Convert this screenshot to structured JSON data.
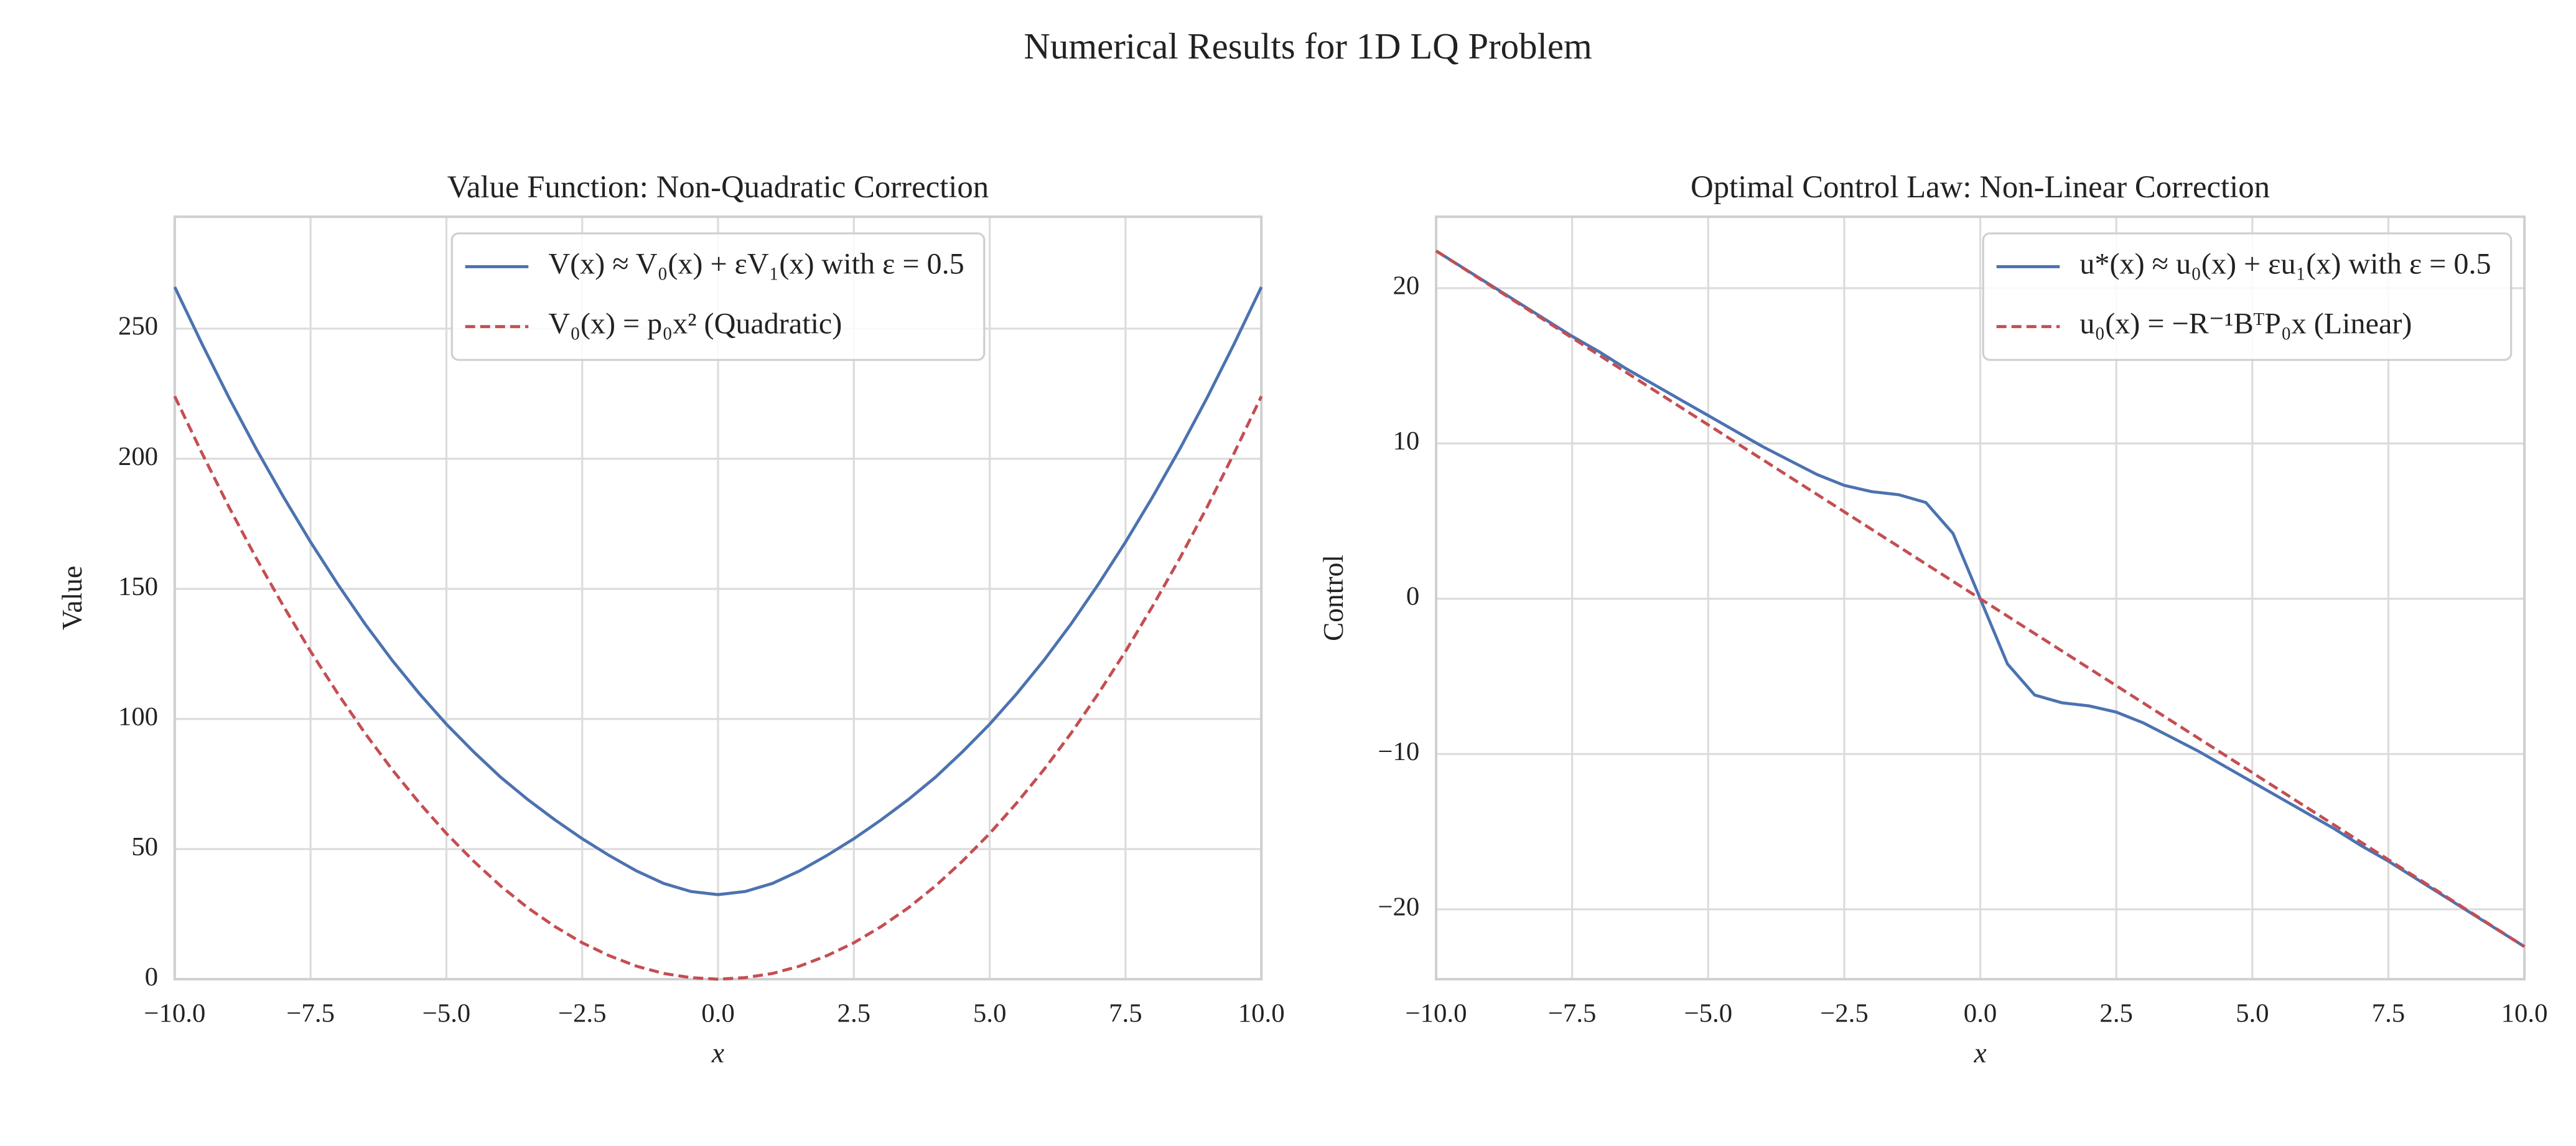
{
  "title": "Numerical Results for 1D LQ Problem",
  "chart_data": [
    {
      "type": "line",
      "title": "Value Function: Non-Quadratic Correction",
      "xlabel": "x",
      "ylabel": "Value",
      "x": [
        -10,
        -9.5,
        -9,
        -8.5,
        -8,
        -7.5,
        -7,
        -6.5,
        -6,
        -5.5,
        -5,
        -4.5,
        -4,
        -3.5,
        -3,
        -2.5,
        -2,
        -1.5,
        -1,
        -0.5,
        0,
        0.5,
        1,
        1.5,
        2,
        2.5,
        3,
        3.5,
        4,
        4.5,
        5,
        5.5,
        6,
        6.5,
        7,
        7.5,
        8,
        8.5,
        9,
        9.5,
        10
      ],
      "series": [
        {
          "name": "V(x) ≈ V₀(x) + εV₁(x) with ε = 0.5",
          "color": "#4c72b0",
          "style": "solid",
          "values": [
            266,
            244.2,
            223.4,
            203.8,
            185.4,
            168,
            151.8,
            136.6,
            122.6,
            109.8,
            98,
            87.4,
            77.6,
            69,
            61.2,
            54,
            47.5,
            41.6,
            36.8,
            33.7,
            32.5,
            33.7,
            36.8,
            41.6,
            47.5,
            54,
            61.2,
            69,
            77.6,
            87.4,
            98,
            109.8,
            122.6,
            136.6,
            151.8,
            168,
            185.4,
            203.8,
            223.4,
            244.2,
            266
          ]
        },
        {
          "name": "V₀(x) = p₀x² (Quadratic)",
          "color": "#c44e52",
          "style": "dashed",
          "values": [
            224,
            202.2,
            181.4,
            161.8,
            143.4,
            126,
            109.8,
            94.6,
            80.6,
            67.8,
            56,
            45.4,
            35.8,
            27.4,
            20.2,
            14,
            9,
            5,
            2.2,
            0.6,
            0,
            0.6,
            2.2,
            5,
            9,
            14,
            20.2,
            27.4,
            35.8,
            45.4,
            56,
            67.8,
            80.6,
            94.6,
            109.8,
            126,
            143.4,
            161.8,
            181.4,
            202.2,
            224
          ]
        }
      ],
      "xlim": [
        -10,
        10
      ],
      "xticks": [
        {
          "value": -10,
          "label": "−10.0"
        },
        {
          "value": -7.5,
          "label": "−7.5"
        },
        {
          "value": -5,
          "label": "−5.0"
        },
        {
          "value": -2.5,
          "label": "−2.5"
        },
        {
          "value": 0,
          "label": "0.0"
        },
        {
          "value": 2.5,
          "label": "2.5"
        },
        {
          "value": 5,
          "label": "5.0"
        },
        {
          "value": 7.5,
          "label": "7.5"
        },
        {
          "value": 10,
          "label": "10.0"
        }
      ],
      "ylim": [
        0,
        293
      ],
      "yticks": [
        0,
        50,
        100,
        150,
        200,
        250
      ],
      "grid": true,
      "legend": "upper center"
    },
    {
      "type": "line",
      "title": "Optimal Control Law: Non-Linear Correction",
      "xlabel": "x",
      "ylabel": "Control",
      "x": [
        -10,
        -9.5,
        -9,
        -8.5,
        -8,
        -7.5,
        -7,
        -6.5,
        -6,
        -5.5,
        -5,
        -4.5,
        -4,
        -3.5,
        -3,
        -2.5,
        -2,
        -1.5,
        -1,
        -0.5,
        0,
        0.5,
        1,
        1.5,
        2,
        2.5,
        3,
        3.5,
        4,
        4.5,
        5,
        5.5,
        6,
        6.5,
        7,
        7.5,
        8,
        8.5,
        9,
        9.5,
        10
      ],
      "series": [
        {
          "name": "u*(x) ≈ u₀(x) + εu₁(x) with ε = 0.5",
          "color": "#4c72b0",
          "style": "solid",
          "values": [
            22.4,
            21.3,
            20.2,
            19.1,
            18,
            16.9,
            15.9,
            14.8,
            13.8,
            12.8,
            11.8,
            10.8,
            9.8,
            8.9,
            8,
            7.3,
            6.9,
            6.7,
            6.2,
            4.2,
            0,
            -4.2,
            -6.2,
            -6.7,
            -6.9,
            -7.3,
            -8,
            -8.9,
            -9.8,
            -10.8,
            -11.8,
            -12.8,
            -13.8,
            -14.8,
            -15.9,
            -16.9,
            -18,
            -19.1,
            -20.2,
            -21.3,
            -22.4
          ]
        },
        {
          "name": "u₀(x) = −R⁻¹BᵀP₀x (Linear)",
          "color": "#c44e52",
          "style": "dashed",
          "values": [
            22.4,
            21.28,
            20.16,
            19.04,
            17.92,
            16.8,
            15.68,
            14.56,
            13.44,
            12.32,
            11.2,
            10.08,
            8.96,
            7.84,
            6.72,
            5.6,
            4.48,
            3.36,
            2.24,
            1.12,
            0,
            -1.12,
            -2.24,
            -3.36,
            -4.48,
            -5.6,
            -6.72,
            -7.84,
            -8.96,
            -10.08,
            -11.2,
            -12.32,
            -13.44,
            -14.56,
            -15.68,
            -16.8,
            -17.92,
            -19.04,
            -20.16,
            -21.28,
            -22.4
          ]
        }
      ],
      "xlim": [
        -10,
        10
      ],
      "xticks": [
        {
          "value": -10,
          "label": "−10.0"
        },
        {
          "value": -7.5,
          "label": "−7.5"
        },
        {
          "value": -5,
          "label": "−5.0"
        },
        {
          "value": -2.5,
          "label": "−2.5"
        },
        {
          "value": 0,
          "label": "0.0"
        },
        {
          "value": 2.5,
          "label": "2.5"
        },
        {
          "value": 5,
          "label": "5.0"
        },
        {
          "value": 7.5,
          "label": "7.5"
        },
        {
          "value": 10,
          "label": "10.0"
        }
      ],
      "ylim": [
        -24.5,
        24.6
      ],
      "yticks": [
        {
          "value": -20,
          "label": "−20"
        },
        {
          "value": -10,
          "label": "−10"
        },
        0,
        10,
        20
      ],
      "grid": true,
      "legend": "upper right"
    }
  ]
}
